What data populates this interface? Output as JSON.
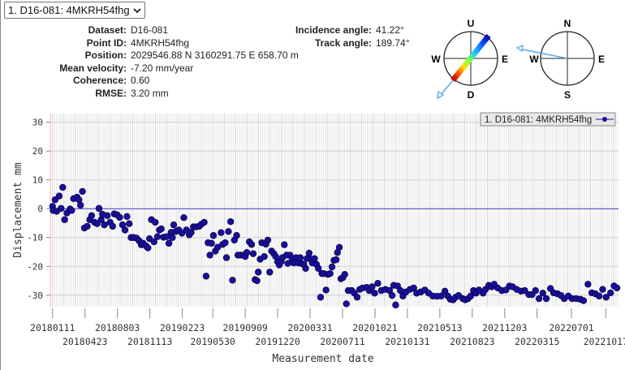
{
  "selector": {
    "value": "1. D16-081: 4MKRH54fhg"
  },
  "info_left": [
    {
      "label": "Dataset:",
      "value": "D16-081"
    },
    {
      "label": "Point ID:",
      "value": "4MKRH54fhg"
    },
    {
      "label": "Position:",
      "value": "2029546.88 N 3160291.75 E 658.70 m"
    },
    {
      "label": "Mean velocity:",
      "value": "-7.20 mm/year"
    },
    {
      "label": "Coherence:",
      "value": "0.60"
    },
    {
      "label": "RMSE:",
      "value": "3.20 mm"
    }
  ],
  "info_right": [
    {
      "label": "Incidence angle:",
      "value": "41.22°"
    },
    {
      "label": "Track angle:",
      "value": "189.74°"
    }
  ],
  "compass_vertical": {
    "top": "U",
    "bottom": "D",
    "left": "W",
    "right": "E"
  },
  "compass_horizontal": {
    "top": "N",
    "bottom": "S",
    "left": "W",
    "right": "E"
  },
  "colors": {
    "point": "#1a0f99",
    "zero_line": "#4444cc",
    "arrow": "#5aa7e0"
  },
  "chart_data": {
    "type": "scatter",
    "xlabel": "Measurement date",
    "ylabel": "Displacement mm",
    "ylim": [
      -34,
      33
    ],
    "yticks": [
      30,
      20,
      10,
      0,
      -10,
      -20,
      -30
    ],
    "start_date": "20180111",
    "x_day_range": [
      -7,
      1780
    ],
    "xticks": [
      "20180111",
      "20180423",
      "20180803",
      "20181113",
      "20190223",
      "20190530",
      "20190909",
      "20191220",
      "20200331",
      "20200711",
      "20201021",
      "20210131",
      "20210513",
      "20210823",
      "20211203",
      "20220315",
      "20220701",
      "20221017"
    ],
    "legend": {
      "label": "1. D16-081: 4MKRH54fhg",
      "position": "top-right"
    },
    "grid": true,
    "series": [
      {
        "name": "1. D16-081: 4MKRH54fhg",
        "points_day_mm": [
          [
            0,
            0.8
          ],
          [
            2,
            -0.6
          ],
          [
            8,
            3.1
          ],
          [
            13,
            -0.9
          ],
          [
            21,
            4.4
          ],
          [
            27,
            0.1
          ],
          [
            32,
            7.4
          ],
          [
            38,
            -3.8
          ],
          [
            45,
            -1.5
          ],
          [
            55,
            -0.1
          ],
          [
            60,
            -0.6
          ],
          [
            66,
            3.5
          ],
          [
            77,
            4.0
          ],
          [
            83,
            3.1
          ],
          [
            88,
            1.2
          ],
          [
            94,
            6.0
          ],
          [
            100,
            -6.7
          ],
          [
            109,
            -6.1
          ],
          [
            117,
            -3.8
          ],
          [
            123,
            -2.4
          ],
          [
            132,
            -4.7
          ],
          [
            140,
            -5.2
          ],
          [
            146,
            0.1
          ],
          [
            153,
            -3.8
          ],
          [
            157,
            -1.9
          ],
          [
            163,
            -5.6
          ],
          [
            172,
            -2.4
          ],
          [
            181,
            -4.7
          ],
          [
            189,
            -6.1
          ],
          [
            194,
            -1.8
          ],
          [
            203,
            -2.1
          ],
          [
            211,
            -3.0
          ],
          [
            220,
            -5.6
          ],
          [
            228,
            -7.4
          ],
          [
            234,
            -2.7
          ],
          [
            241,
            -5.2
          ],
          [
            247,
            -10.0
          ],
          [
            255,
            -10.0
          ],
          [
            264,
            -10.2
          ],
          [
            272,
            -11.1
          ],
          [
            279,
            -12.5
          ],
          [
            285,
            -12.0
          ],
          [
            294,
            -12.9
          ],
          [
            300,
            -13.6
          ],
          [
            305,
            -10.4
          ],
          [
            311,
            -3.8
          ],
          [
            319,
            -11.5
          ],
          [
            323,
            -4.7
          ],
          [
            330,
            -9.7
          ],
          [
            336,
            -7.4
          ],
          [
            342,
            -7.0
          ],
          [
            349,
            -9.9
          ],
          [
            359,
            -9.7
          ],
          [
            366,
            -12.0
          ],
          [
            373,
            -8.2
          ],
          [
            377,
            -10.0
          ],
          [
            381,
            -5.6
          ],
          [
            388,
            -7.9
          ],
          [
            397,
            -7.4
          ],
          [
            407,
            -8.5
          ],
          [
            413,
            -3.1
          ],
          [
            421,
            -7.4
          ],
          [
            430,
            -9.1
          ],
          [
            436,
            -8.2
          ],
          [
            443,
            -6.3
          ],
          [
            451,
            -6.3
          ],
          [
            461,
            -6.1
          ],
          [
            468,
            -5.4
          ],
          [
            477,
            -4.7
          ],
          [
            483,
            -23.4
          ],
          [
            489,
            -11.8
          ],
          [
            495,
            -16.1
          ],
          [
            500,
            -12.0
          ],
          [
            506,
            -9.3
          ],
          [
            512,
            -14.7
          ],
          [
            519,
            -13.4
          ],
          [
            530,
            -8.3
          ],
          [
            535,
            -12.4
          ],
          [
            543,
            -11.8
          ],
          [
            547,
            -17.0
          ],
          [
            553,
            -7.9
          ],
          [
            560,
            -4.5
          ],
          [
            566,
            -24.8
          ],
          [
            572,
            -10.9
          ],
          [
            579,
            -9.3
          ],
          [
            583,
            -16.1
          ],
          [
            592,
            -16.1
          ],
          [
            600,
            -16.1
          ],
          [
            606,
            -16.6
          ],
          [
            611,
            -15.2
          ],
          [
            619,
            -11.5
          ],
          [
            626,
            -12.4
          ],
          [
            631,
            -15.6
          ],
          [
            637,
            -24.6
          ],
          [
            643,
            -25.0
          ],
          [
            647,
            -22.0
          ],
          [
            653,
            -17.5
          ],
          [
            658,
            -11.8
          ],
          [
            666,
            -16.6
          ],
          [
            671,
            -12.3
          ],
          [
            677,
            -10.9
          ],
          [
            683,
            -22.0
          ],
          [
            689,
            -14.7
          ],
          [
            696,
            -15.6
          ],
          [
            702,
            -16.6
          ],
          [
            708,
            -18.4
          ],
          [
            713,
            -19.5
          ],
          [
            719,
            -18.4
          ],
          [
            723,
            -17.0
          ],
          [
            729,
            -12.5
          ],
          [
            736,
            -16.1
          ],
          [
            740,
            -19.0
          ],
          [
            747,
            -16.1
          ],
          [
            753,
            -17.3
          ],
          [
            759,
            -18.8
          ],
          [
            766,
            -17.0
          ],
          [
            773,
            -18.8
          ],
          [
            779,
            -17.0
          ],
          [
            785,
            -19.1
          ],
          [
            790,
            -19.3
          ],
          [
            796,
            -20.7
          ],
          [
            800,
            -17.3
          ],
          [
            807,
            -15.4
          ],
          [
            813,
            -17.5
          ],
          [
            817,
            -18.8
          ],
          [
            824,
            -17.3
          ],
          [
            830,
            -19.3
          ],
          [
            836,
            -20.7
          ],
          [
            843,
            -30.7
          ],
          [
            847,
            -22.5
          ],
          [
            853,
            -22.5
          ],
          [
            860,
            -28.2
          ],
          [
            866,
            -22.8
          ],
          [
            873,
            -22.5
          ],
          [
            879,
            -20.2
          ],
          [
            885,
            -17.9
          ],
          [
            892,
            -17.7
          ],
          [
            896,
            -15.2
          ],
          [
            902,
            -13.4
          ],
          [
            907,
            -24.3
          ],
          [
            913,
            -23.9
          ],
          [
            919,
            -22.8
          ],
          [
            924,
            -33.0
          ],
          [
            930,
            -28.4
          ],
          [
            941,
            -28.4
          ],
          [
            949,
            -29.3
          ],
          [
            958,
            -30.7
          ],
          [
            966,
            -28.0
          ],
          [
            975,
            -27.5
          ],
          [
            988,
            -27.3
          ],
          [
            996,
            -28.4
          ],
          [
            1005,
            -27.1
          ],
          [
            1013,
            -29.3
          ],
          [
            1023,
            -25.9
          ],
          [
            1034,
            -28.4
          ],
          [
            1047,
            -28.0
          ],
          [
            1060,
            -28.4
          ],
          [
            1068,
            -30.1
          ],
          [
            1073,
            -26.6
          ],
          [
            1079,
            -33.4
          ],
          [
            1085,
            -26.8
          ],
          [
            1094,
            -28.4
          ],
          [
            1102,
            -30.3
          ],
          [
            1111,
            -28.9
          ],
          [
            1124,
            -28.0
          ],
          [
            1136,
            -27.5
          ],
          [
            1145,
            -29.3
          ],
          [
            1158,
            -28.9
          ],
          [
            1171,
            -28.2
          ],
          [
            1183,
            -29.3
          ],
          [
            1196,
            -30.3
          ],
          [
            1209,
            -30.4
          ],
          [
            1222,
            -30.3
          ],
          [
            1234,
            -28.6
          ],
          [
            1243,
            -30.3
          ],
          [
            1251,
            -31.4
          ],
          [
            1260,
            -31.6
          ],
          [
            1268,
            -30.7
          ],
          [
            1277,
            -30.1
          ],
          [
            1290,
            -31.2
          ],
          [
            1298,
            -31.6
          ],
          [
            1307,
            -31.2
          ],
          [
            1315,
            -30.3
          ],
          [
            1324,
            -28.4
          ],
          [
            1332,
            -29.3
          ],
          [
            1341,
            -28.2
          ],
          [
            1354,
            -29.3
          ],
          [
            1362,
            -28.0
          ],
          [
            1372,
            -26.6
          ],
          [
            1381,
            -27.1
          ],
          [
            1389,
            -26.2
          ],
          [
            1400,
            -27.5
          ],
          [
            1413,
            -28.4
          ],
          [
            1426,
            -28.2
          ],
          [
            1437,
            -26.8
          ],
          [
            1447,
            -27.1
          ],
          [
            1460,
            -28.0
          ],
          [
            1473,
            -28.6
          ],
          [
            1485,
            -28.4
          ],
          [
            1498,
            -29.8
          ],
          [
            1508,
            -29.8
          ],
          [
            1519,
            -28.4
          ],
          [
            1530,
            -31.2
          ],
          [
            1542,
            -29.3
          ],
          [
            1553,
            -31.2
          ],
          [
            1566,
            -27.7
          ],
          [
            1576,
            -29.2
          ],
          [
            1588,
            -29.5
          ],
          [
            1599,
            -30.1
          ],
          [
            1609,
            -31.2
          ],
          [
            1622,
            -30.3
          ],
          [
            1634,
            -31.2
          ],
          [
            1647,
            -31.2
          ],
          [
            1660,
            -31.4
          ],
          [
            1670,
            -31.9
          ],
          [
            1684,
            -26.2
          ],
          [
            1696,
            -29.2
          ],
          [
            1707,
            -29.5
          ],
          [
            1719,
            -30.3
          ],
          [
            1730,
            -28.0
          ],
          [
            1741,
            -30.7
          ],
          [
            1755,
            -29.2
          ],
          [
            1766,
            -26.8
          ],
          [
            1775,
            -27.5
          ]
        ]
      }
    ]
  }
}
